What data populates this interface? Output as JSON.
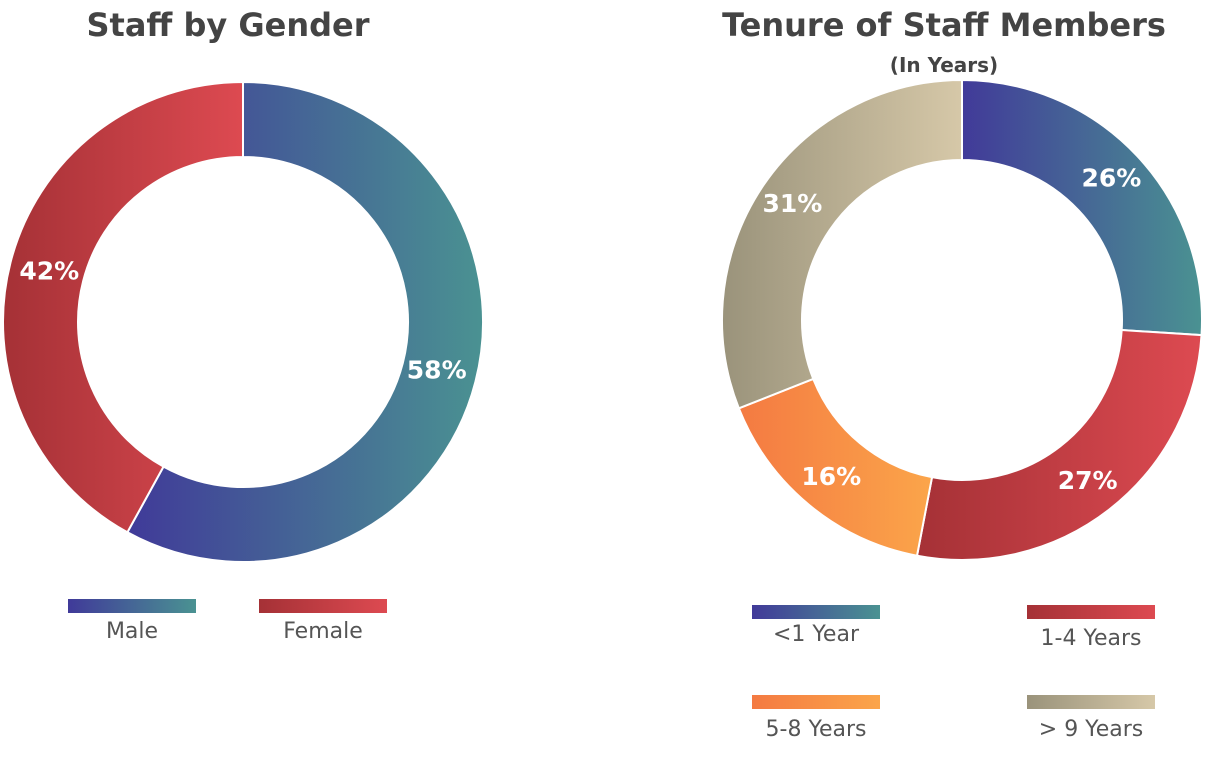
{
  "chart_data": [
    {
      "type": "donut",
      "title": "Staff by Gender",
      "categories": [
        "Male",
        "Female"
      ],
      "values": [
        58,
        42
      ],
      "value_labels": [
        "58%",
        "42%"
      ],
      "colors": [
        [
          "#403a99",
          "#4a9292"
        ],
        [
          "#a53136",
          "#dd4a51"
        ]
      ]
    },
    {
      "type": "donut",
      "title": "Tenure of Staff Members",
      "subtitle": "(In Years)",
      "categories": [
        "<1 Year",
        "1-4 Years",
        "5-8 Years",
        "> 9 Years"
      ],
      "values": [
        26,
        27,
        16,
        31
      ],
      "value_labels": [
        "26%",
        "27%",
        "16%",
        "31%"
      ],
      "colors": [
        [
          "#413a99",
          "#4a9292"
        ],
        [
          "#a53136",
          "#dd4a51"
        ],
        [
          "#f47a42",
          "#fba54a"
        ],
        [
          "#9a937b",
          "#d6c8a8"
        ]
      ]
    }
  ]
}
